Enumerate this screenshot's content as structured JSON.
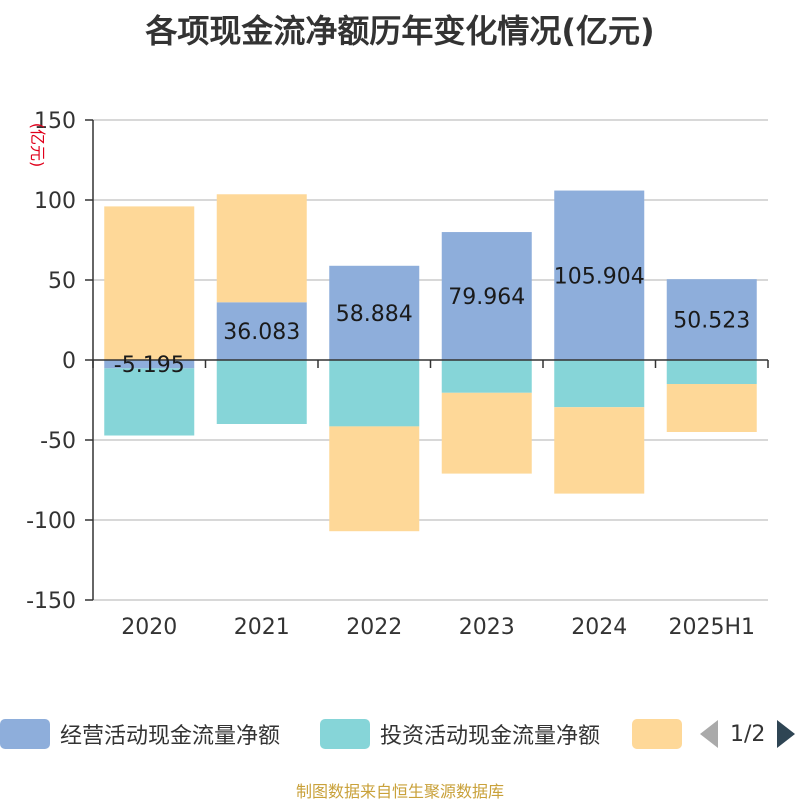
{
  "title": "各项现金流净额历年变化情况(亿元)",
  "source_note": "制图数据来自恒生聚源数据库",
  "legend_page": "1/2",
  "colors": {
    "operating": "#8eaedb",
    "investing": "#86d5d8",
    "financing": "#fed898",
    "axis": "#333333",
    "grid": "#cccccc",
    "unit": "#e0001b"
  },
  "chart_data": {
    "type": "bar",
    "stacked": true,
    "title": "各项现金流净额历年变化情况(亿元)",
    "ylabel": "(亿元)",
    "ylim": [
      -150,
      150
    ],
    "yticks": [
      150,
      100,
      50,
      0,
      -50,
      -100,
      -150
    ],
    "grid": true,
    "legend_position": "bottom",
    "categories": [
      "2020",
      "2021",
      "2022",
      "2023",
      "2024",
      "2025H1"
    ],
    "series": [
      {
        "name": "经营活动现金流量净额",
        "values": [
          -5.195,
          36.083,
          58.884,
          79.964,
          105.904,
          50.523
        ]
      },
      {
        "name": "投资活动现金流量净额",
        "values": [
          -42,
          -40,
          -41.5,
          -20.5,
          -29.5,
          -15
        ]
      },
      {
        "name": "",
        "values": [
          96,
          67.5,
          -65.5,
          -50.5,
          -54,
          -30
        ]
      }
    ],
    "data_labels": [
      "-5.195",
      "36.083",
      "58.884",
      "79.964",
      "105.904",
      "50.523"
    ]
  }
}
